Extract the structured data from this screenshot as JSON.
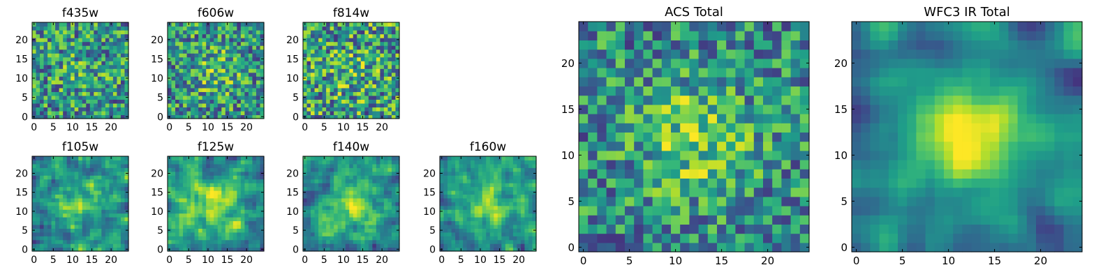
{
  "colormap": "viridis",
  "colormap_stops": [
    "#440154",
    "#482878",
    "#3e4989",
    "#31688e",
    "#26828e",
    "#1f9e89",
    "#35b779",
    "#6ece58",
    "#b5de2b",
    "#fde725"
  ],
  "chart_data": [
    {
      "type": "heatmap",
      "title": "f435w",
      "grid_size": 25,
      "xticks": [
        0,
        5,
        10,
        15,
        20
      ],
      "yticks": [
        0,
        5,
        10,
        15,
        20
      ],
      "xlim": [
        -0.5,
        24.5
      ],
      "ylim": [
        -0.5,
        24.5
      ],
      "origin": "lower",
      "source": "small",
      "seed": 11,
      "center_boost": 0.1,
      "smooth": 0,
      "noise": 0.9
    },
    {
      "type": "heatmap",
      "title": "f606w",
      "grid_size": 25,
      "xticks": [
        0,
        5,
        10,
        15,
        20
      ],
      "yticks": [
        0,
        5,
        10,
        15,
        20
      ],
      "xlim": [
        -0.5,
        24.5
      ],
      "ylim": [
        -0.5,
        24.5
      ],
      "origin": "lower",
      "source": "small",
      "seed": 23,
      "center_boost": 0.18,
      "smooth": 0,
      "noise": 0.9
    },
    {
      "type": "heatmap",
      "title": "f814w",
      "grid_size": 25,
      "xticks": [
        0,
        5,
        10,
        15,
        20
      ],
      "yticks": [
        0,
        5,
        10,
        15,
        20
      ],
      "xlim": [
        -0.5,
        24.5
      ],
      "ylim": [
        -0.5,
        24.5
      ],
      "origin": "lower",
      "source": "small",
      "seed": 37,
      "center_boost": 0.08,
      "smooth": 0,
      "noise": 1.0
    },
    {
      "type": "heatmap",
      "title": "f105w",
      "grid_size": 25,
      "xticks": [
        0,
        5,
        10,
        15,
        20
      ],
      "yticks": [
        0,
        5,
        10,
        15,
        20
      ],
      "xlim": [
        -0.5,
        24.5
      ],
      "ylim": [
        -0.5,
        24.5
      ],
      "origin": "lower",
      "source": "small",
      "seed": 41,
      "center_boost": 0.3,
      "smooth": 1,
      "noise": 0.9
    },
    {
      "type": "heatmap",
      "title": "f125w",
      "grid_size": 25,
      "xticks": [
        0,
        5,
        10,
        15,
        20
      ],
      "yticks": [
        0,
        5,
        10,
        15,
        20
      ],
      "xlim": [
        -0.5,
        24.5
      ],
      "ylim": [
        -0.5,
        24.5
      ],
      "origin": "lower",
      "source": "small",
      "seed": 53,
      "center_boost": 0.32,
      "smooth": 1,
      "noise": 0.9
    },
    {
      "type": "heatmap",
      "title": "f140w",
      "grid_size": 25,
      "xticks": [
        0,
        5,
        10,
        15,
        20
      ],
      "yticks": [
        0,
        5,
        10,
        15,
        20
      ],
      "xlim": [
        -0.5,
        24.5
      ],
      "ylim": [
        -0.5,
        24.5
      ],
      "origin": "lower",
      "source": "small",
      "seed": 67,
      "center_boost": 0.35,
      "smooth": 1,
      "noise": 0.8
    },
    {
      "type": "heatmap",
      "title": "f160w",
      "grid_size": 25,
      "xticks": [
        0,
        5,
        10,
        15,
        20
      ],
      "yticks": [
        0,
        5,
        10,
        15,
        20
      ],
      "xlim": [
        -0.5,
        24.5
      ],
      "ylim": [
        -0.5,
        24.5
      ],
      "origin": "lower",
      "source": "small",
      "seed": 79,
      "center_boost": 0.35,
      "smooth": 1,
      "noise": 0.8
    },
    {
      "type": "heatmap",
      "title": "ACS Total",
      "grid_size": 25,
      "xticks": [
        0,
        5,
        10,
        15,
        20
      ],
      "yticks": [
        0,
        5,
        10,
        15,
        20
      ],
      "xlim": [
        -0.5,
        24.5
      ],
      "ylim": [
        -0.5,
        24.5
      ],
      "origin": "lower",
      "source": "large",
      "seed": 97,
      "center_boost": 0.3,
      "smooth": 0,
      "noise": 0.8
    },
    {
      "type": "heatmap",
      "title": "WFC3 IR Total",
      "grid_size": 25,
      "xticks": [
        0,
        5,
        10,
        15,
        20
      ],
      "yticks": [
        0,
        5,
        10,
        15,
        20
      ],
      "xlim": [
        -0.5,
        24.5
      ],
      "ylim": [
        -0.5,
        24.5
      ],
      "origin": "lower",
      "source": "large",
      "seed": 113,
      "center_boost": 0.55,
      "smooth": 2,
      "noise": 0.7
    }
  ]
}
